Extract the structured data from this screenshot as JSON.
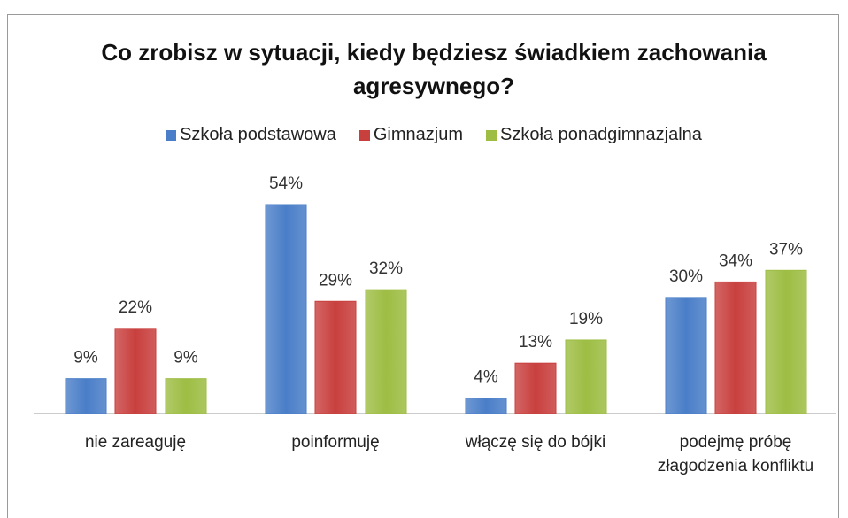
{
  "chart_data": {
    "type": "bar",
    "title": "Co zrobisz w sytuacji, kiedy będziesz świadkiem zachowania agresywnego?",
    "categories": [
      "nie zareaguję",
      "poinformuję",
      "włączę się do bójki",
      "podejmę próbę złagodzenia konfliktu"
    ],
    "series": [
      {
        "name": "Szkoła podstawowa",
        "color": "#4a7ec8",
        "values": [
          9,
          54,
          4,
          30
        ],
        "value_labels": [
          "9%",
          "54%",
          "4%",
          "30%"
        ]
      },
      {
        "name": "Gimnazjum",
        "color": "#c8403e",
        "values": [
          22,
          29,
          13,
          34
        ],
        "value_labels": [
          "22%",
          "29%",
          "13%",
          "34%"
        ]
      },
      {
        "name": "Szkoła ponadgimnazjalna",
        "color": "#9dbd43",
        "values": [
          9,
          32,
          19,
          37
        ],
        "value_labels": [
          "9%",
          "32%",
          "19%",
          "37%"
        ]
      }
    ],
    "legend": "top"
  }
}
